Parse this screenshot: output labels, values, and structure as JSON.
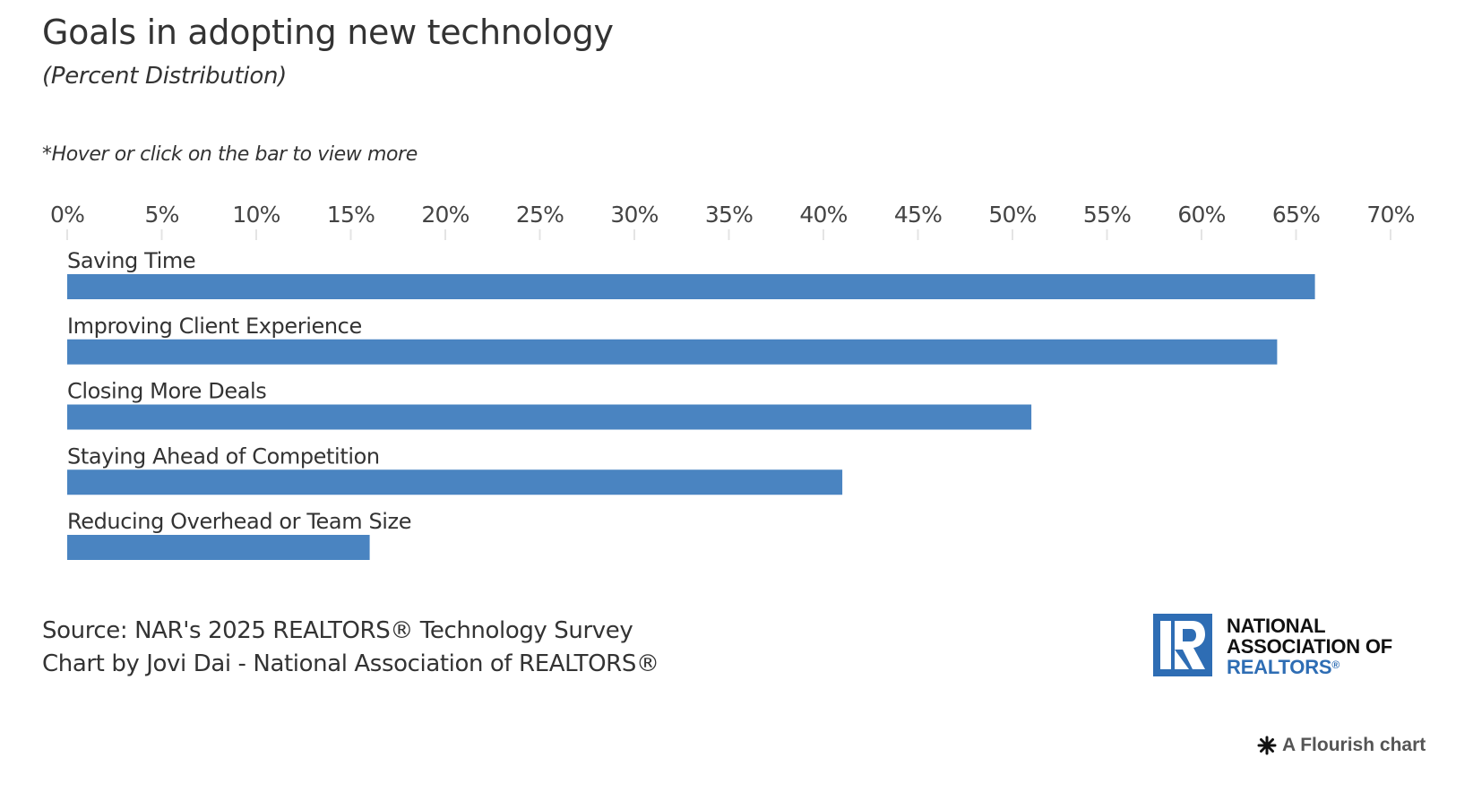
{
  "header": {
    "title": "Goals in adopting new technology",
    "subtitle": "(Percent Distribution)",
    "note": "*Hover or click on the bar to view more"
  },
  "chart_data": {
    "type": "bar",
    "orientation": "horizontal",
    "title": "Goals in adopting new technology",
    "subtitle": "(Percent Distribution)",
    "xlabel": "",
    "ylabel": "",
    "xlim": [
      0,
      70
    ],
    "x_ticks": [
      0,
      5,
      10,
      15,
      20,
      25,
      30,
      35,
      40,
      45,
      50,
      55,
      60,
      65,
      70
    ],
    "x_tick_labels": [
      "0%",
      "5%",
      "10%",
      "15%",
      "20%",
      "25%",
      "30%",
      "35%",
      "40%",
      "45%",
      "50%",
      "55%",
      "60%",
      "65%",
      "70%"
    ],
    "categories": [
      "Saving Time",
      "Improving Client Experience",
      "Closing More Deals",
      "Staying Ahead of Competition",
      "Reducing Overhead or Team Size"
    ],
    "values": [
      66,
      64,
      51,
      41,
      16
    ],
    "unit": "%",
    "grid": false,
    "legend": "none",
    "bar_color": "#4a84c1"
  },
  "footer": {
    "source": "Source: NAR's 2025 REALTORS® Technology Survey",
    "credit": "Chart by Jovi Dai - National Association of REALTORS®"
  },
  "logo": {
    "line1": "NATIONAL",
    "line2": "ASSOCIATION OF",
    "line3": "REALTORS",
    "registered": "®",
    "brand_color": "#2e6db4"
  },
  "flourish": {
    "label": "A Flourish chart",
    "icon": "flourish-asterisk-icon"
  }
}
